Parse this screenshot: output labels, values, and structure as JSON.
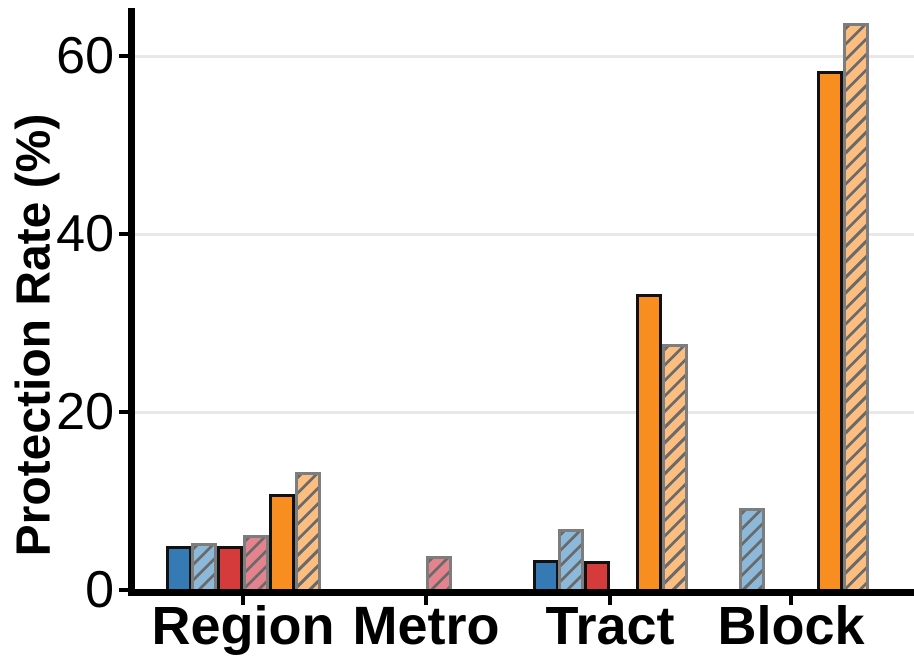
{
  "figure": {
    "background": "#ffffff"
  },
  "chart_data": {
    "type": "bar",
    "title": "",
    "xlabel": "",
    "ylabel": "Protection Rate (%)",
    "categories": [
      "Region",
      "Metro",
      "Tract",
      "Block"
    ],
    "y_ticks": [
      0,
      20,
      40,
      60
    ],
    "ylim": [
      0,
      65.5
    ],
    "grid": "horizontal",
    "grid_values": [
      20,
      40,
      60
    ],
    "legend": "none",
    "series": [
      {
        "name": "blue-solid",
        "fill": "#3579b5",
        "edge": "#111111",
        "hatch": false,
        "values": [
          4.9,
          0,
          3.4,
          0
        ]
      },
      {
        "name": "blue-hatched",
        "fill": "#8cb8d9",
        "edge": "#7d7d7d",
        "hatch": true,
        "values": [
          5.3,
          0,
          6.9,
          9.2
        ]
      },
      {
        "name": "red-solid",
        "fill": "#d63b3b",
        "edge": "#111111",
        "hatch": false,
        "values": [
          5.0,
          0,
          3.3,
          0
        ]
      },
      {
        "name": "red-hatched",
        "fill": "#e4838d",
        "edge": "#7d7d7d",
        "hatch": true,
        "values": [
          6.2,
          3.8,
          0,
          0
        ]
      },
      {
        "name": "orange-solid",
        "fill": "#f98e20",
        "edge": "#111111",
        "hatch": false,
        "values": [
          10.8,
          0,
          33.3,
          58.3
        ]
      },
      {
        "name": "orange-hatched",
        "fill": "#fcbd80",
        "edge": "#7d7d7d",
        "hatch": true,
        "values": [
          13.3,
          0,
          27.6,
          63.7
        ]
      }
    ],
    "hatch_style": {
      "pattern": "/",
      "color": "#6a6a6a"
    },
    "colors": {
      "axis": "#000000",
      "grid": "#e8e8e8",
      "tick_label": "#000000"
    }
  }
}
